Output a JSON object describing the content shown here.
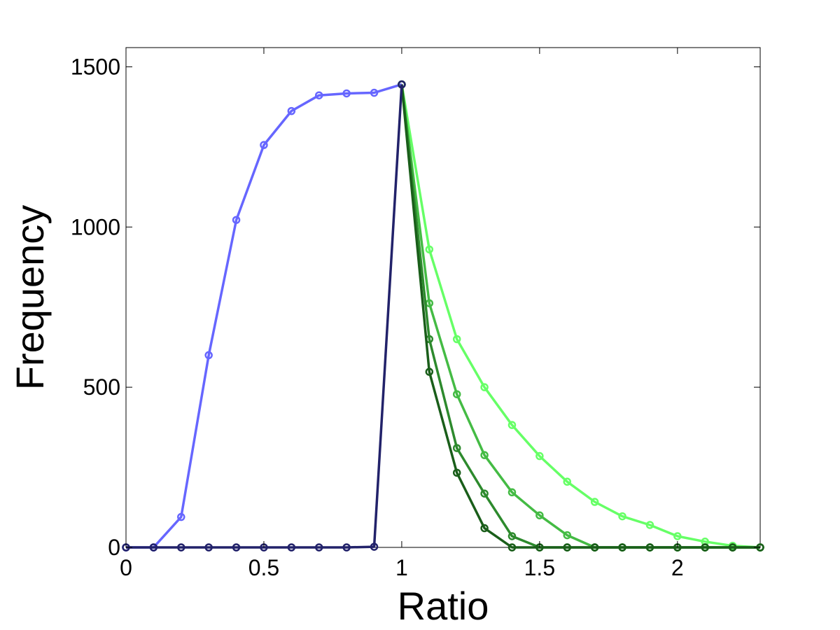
{
  "chart_data": {
    "type": "line",
    "title": "",
    "xlabel": "Ratio",
    "ylabel": "Frequency",
    "xlim": [
      0,
      2.3
    ],
    "ylim": [
      0,
      1560
    ],
    "xticks": [
      0,
      0.5,
      1,
      1.5,
      2
    ],
    "xtick_labels": [
      "0",
      "0.5",
      "1",
      "1.5",
      "2"
    ],
    "yticks": [
      0,
      500,
      1000,
      1500
    ],
    "ytick_labels": [
      "0",
      "500",
      "1000",
      "1500"
    ],
    "grid": false,
    "legend": "none",
    "series": [
      {
        "color": "#6666ff",
        "x": [
          0,
          0.1,
          0.2,
          0.3,
          0.4,
          0.5,
          0.6,
          0.7,
          0.8,
          0.9,
          1.0
        ],
        "y": [
          0,
          0,
          95,
          600,
          1022,
          1256,
          1362,
          1411,
          1417,
          1419,
          1445
        ]
      },
      {
        "color": "#66ff66",
        "x": [
          1.0,
          1.1,
          1.2,
          1.3,
          1.4,
          1.5,
          1.6,
          1.7,
          1.8,
          1.9,
          2.0,
          2.1,
          2.2,
          2.3
        ],
        "y": [
          1445,
          930,
          650,
          500,
          382,
          285,
          205,
          142,
          97,
          70,
          35,
          18,
          5,
          0
        ]
      },
      {
        "color": "#44bb44",
        "x": [
          1.0,
          1.1,
          1.2,
          1.3,
          1.4,
          1.5,
          1.6,
          1.7,
          1.8,
          1.9,
          2.0,
          2.1,
          2.2,
          2.3
        ],
        "y": [
          1445,
          762,
          478,
          288,
          172,
          100,
          38,
          0,
          0,
          0,
          0,
          0,
          0,
          0
        ]
      },
      {
        "color": "#2d8a2d",
        "x": [
          1.0,
          1.1,
          1.2,
          1.3,
          1.4,
          1.5,
          1.6,
          1.7,
          1.8,
          1.9,
          2.0,
          2.1,
          2.2,
          2.3
        ],
        "y": [
          1445,
          650,
          310,
          168,
          35,
          0,
          0,
          0,
          0,
          0,
          0,
          0,
          0,
          0
        ]
      },
      {
        "color": "#1a5e1a",
        "x": [
          1.0,
          1.1,
          1.2,
          1.3,
          1.4,
          1.5,
          1.6,
          1.7,
          1.8,
          1.9,
          2.0,
          2.1,
          2.2,
          2.3
        ],
        "y": [
          1445,
          548,
          233,
          60,
          0,
          0,
          0,
          0,
          0,
          0,
          0,
          0,
          0,
          0
        ]
      },
      {
        "color": "#22226a",
        "x": [
          0,
          0.1,
          0.2,
          0.3,
          0.4,
          0.5,
          0.6,
          0.7,
          0.8,
          0.9,
          1.0
        ],
        "y": [
          0,
          0,
          0,
          0,
          0,
          0,
          0,
          0,
          0,
          2,
          1445
        ]
      }
    ]
  }
}
